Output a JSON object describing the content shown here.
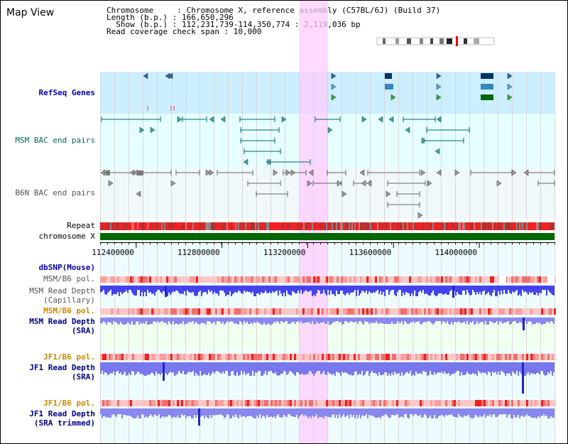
{
  "view_title": "Map View",
  "info": {
    "line1": "Chromosome     : Chromosome X, reference assembly (C57BL/6J) (Build 37)",
    "line2": "Length (b.p.) : 166,650,296",
    "line3": "Show (b.p.) : 112,231,739-114,350,774 : 2,119,036 bp",
    "line4": "Read coverage check span : 10,000"
  },
  "tracks": {
    "refseq": "RefSeq Genes",
    "msm_bac": "MSM BAC end pairs",
    "b6n_bac": "B6N BAC end pairs",
    "repeat": "Repeat",
    "chromosome": "chromosome X",
    "dbsnp": "dbSNP(Mouse)",
    "msm_b6_pol_1": "MSM/B6 pol.",
    "msm_depth_cap_1": "MSM Read Depth",
    "msm_depth_cap_2": "(Capillary)",
    "msm_b6_pol_2": "MSM/B6 pol.",
    "msm_depth_sra_1": "MSM Read Depth",
    "msm_depth_sra_2": "(SRA)",
    "jf1_b6_pol_1": "JF1/B6 pol.",
    "jf1_depth_1": "JF1 Read Depth",
    "jf1_depth_2": "(SRA)",
    "jf1_b6_pol_2": "JF1/B6 pol.",
    "jf1_trim_1": "JF1 Read Depth",
    "jf1_trim_2": "(SRA trimmed)"
  },
  "axis": {
    "ticks": [
      "112400000",
      "112800000",
      "113200000",
      "113600000",
      "114000000"
    ],
    "tick_values": [
      112400000,
      112800000,
      113200000,
      113600000,
      114000000
    ],
    "range": [
      112231739,
      114350774
    ]
  },
  "highlight_range_bp": [
    113160000,
    113295000
  ],
  "colors": {
    "refseq_bg": "#cceeff",
    "bac_bg": "#e6ffff",
    "b6n_bg": "#f0f8fa",
    "highlight": "#ffccff",
    "chromosome": "#006600",
    "repeat": "#ee2222",
    "depth_bar": "#4444ee",
    "pol_base": "#ffc8c8",
    "pol_hot": "#ee2222",
    "gene_dark": "#003366",
    "gene_mid": "#3388bb",
    "gene_green": "#006600"
  }
}
